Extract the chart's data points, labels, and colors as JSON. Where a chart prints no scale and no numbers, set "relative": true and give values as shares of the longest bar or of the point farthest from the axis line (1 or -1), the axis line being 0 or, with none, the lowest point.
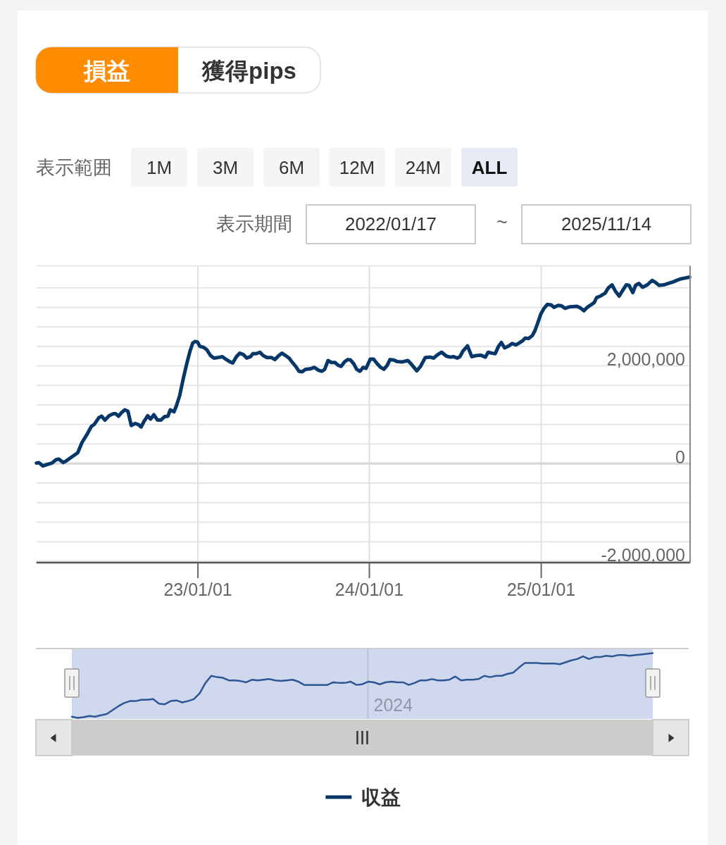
{
  "chart_data": [
    {
      "type": "line",
      "annotations": [
        "損益",
        "獲得pips",
        "表示範囲",
        "1M",
        "3M",
        "6M",
        "12M",
        "24M",
        "ALL",
        "表示期間",
        "2022/01/17",
        "~",
        "2025/11/14"
      ],
      "x": [
        "2022-01-22",
        "2022-01-27",
        "2022-02-05",
        "2022-02-14",
        "2022-02-24",
        "2022-03-05",
        "2022-03-11",
        "2022-03-20",
        "2022-03-26",
        "2022-04-05",
        "2022-04-20",
        "2022-04-29",
        "2022-05-10",
        "2022-05-19",
        "2022-05-25",
        "2022-06-04",
        "2022-06-10",
        "2022-06-17",
        "2022-06-26",
        "2022-07-05",
        "2022-07-10",
        "2022-07-16",
        "2022-07-22",
        "2022-07-29",
        "2022-08-05",
        "2022-08-12",
        "2022-08-20",
        "2022-08-27",
        "2022-09-02",
        "2022-09-08",
        "2022-09-16",
        "2022-09-22",
        "2022-09-29",
        "2022-10-07",
        "2022-10-14",
        "2022-10-22",
        "2022-10-29",
        "2022-11-03",
        "2022-11-11",
        "2022-11-16",
        "2022-11-23",
        "2022-12-01",
        "2022-12-08",
        "2022-12-15",
        "2022-12-21",
        "2022-12-26",
        "2022-12-31",
        "2023-01-05",
        "2023-01-13",
        "2023-01-20",
        "2023-01-28",
        "2023-02-04",
        "2023-02-12",
        "2023-02-22",
        "2023-03-01",
        "2023-03-09",
        "2023-03-16",
        "2023-03-24",
        "2023-03-31",
        "2023-04-08",
        "2023-04-15",
        "2023-04-23",
        "2023-04-28",
        "2023-05-05",
        "2023-05-13",
        "2023-05-20",
        "2023-05-28",
        "2023-06-07",
        "2023-06-14",
        "2023-06-22",
        "2023-06-29",
        "2023-07-07",
        "2023-07-14",
        "2023-07-22",
        "2023-07-29",
        "2023-08-04",
        "2023-08-11",
        "2023-08-18",
        "2023-08-28",
        "2023-09-06",
        "2023-09-15",
        "2023-09-22",
        "2023-09-28",
        "2023-10-05",
        "2023-10-12",
        "2023-10-20",
        "2023-10-27",
        "2023-11-02",
        "2023-11-09",
        "2023-11-16",
        "2023-11-22",
        "2023-11-29",
        "2023-12-05",
        "2023-12-12",
        "2023-12-19",
        "2023-12-25",
        "2024-01-03",
        "2024-01-10",
        "2024-01-18",
        "2024-01-25",
        "2024-02-01",
        "2024-02-08",
        "2024-02-14",
        "2024-02-22",
        "2024-02-29",
        "2024-03-10",
        "2024-03-23",
        "2024-03-30",
        "2024-04-11",
        "2024-04-19",
        "2024-04-29",
        "2024-05-09",
        "2024-05-17",
        "2024-05-24",
        "2024-06-03",
        "2024-06-13",
        "2024-06-21",
        "2024-06-28",
        "2024-07-06",
        "2024-07-12",
        "2024-07-18",
        "2024-07-28",
        "2024-08-06",
        "2024-08-15",
        "2024-08-25",
        "2024-09-04",
        "2024-09-10",
        "2024-09-19",
        "2024-09-25",
        "2024-10-02",
        "2024-10-08",
        "2024-10-15",
        "2024-10-24",
        "2024-10-31",
        "2024-11-08",
        "2024-11-15",
        "2024-11-23",
        "2024-11-28",
        "2024-12-05",
        "2024-12-13",
        "2024-12-19",
        "2024-12-25",
        "2024-12-31",
        "2025-01-07",
        "2025-01-14",
        "2025-01-22",
        "2025-01-28",
        "2025-02-06",
        "2025-02-13",
        "2025-02-21",
        "2025-03-03",
        "2025-03-18",
        "2025-03-25",
        "2025-04-02",
        "2025-04-09",
        "2025-04-17",
        "2025-04-24",
        "2025-04-29",
        "2025-05-07",
        "2025-05-17",
        "2025-05-24",
        "2025-06-01",
        "2025-06-08",
        "2025-06-16",
        "2025-06-23",
        "2025-07-01",
        "2025-07-07",
        "2025-07-15",
        "2025-07-21",
        "2025-07-28",
        "2025-08-05",
        "2025-08-15",
        "2025-08-25",
        "2025-08-31",
        "2025-09-09",
        "2025-09-19",
        "2025-09-29",
        "2025-10-09",
        "2025-10-16",
        "2025-10-24",
        "2025-11-03",
        "2025-11-13"
      ],
      "series": [
        {
          "name": "収益",
          "color": "#063768",
          "values": [
            10000,
            20000,
            -50000,
            -20000,
            10000,
            80000,
            90000,
            20000,
            50000,
            120000,
            220000,
            430000,
            600000,
            760000,
            800000,
            940000,
            970000,
            890000,
            980000,
            1020000,
            1020000,
            970000,
            1040000,
            1100000,
            1070000,
            780000,
            820000,
            800000,
            750000,
            860000,
            980000,
            910000,
            1000000,
            890000,
            890000,
            960000,
            970000,
            1100000,
            1060000,
            1180000,
            1390000,
            1750000,
            2040000,
            2300000,
            2470000,
            2500000,
            2490000,
            2400000,
            2380000,
            2330000,
            2210000,
            2160000,
            2170000,
            2190000,
            2140000,
            2090000,
            2060000,
            2190000,
            2260000,
            2230000,
            2160000,
            2190000,
            2250000,
            2250000,
            2280000,
            2210000,
            2170000,
            2170000,
            2130000,
            2210000,
            2260000,
            2210000,
            2160000,
            2060000,
            1980000,
            1890000,
            1880000,
            1930000,
            1940000,
            1970000,
            1910000,
            1890000,
            1930000,
            2110000,
            2070000,
            2070000,
            2010000,
            1990000,
            2080000,
            2130000,
            2120000,
            2040000,
            1930000,
            1890000,
            1970000,
            1950000,
            2140000,
            2140000,
            2040000,
            1970000,
            1930000,
            2010000,
            2130000,
            2120000,
            2090000,
            2080000,
            2110000,
            2040000,
            1900000,
            1990000,
            2170000,
            2180000,
            2160000,
            2220000,
            2280000,
            2200000,
            2180000,
            2190000,
            2160000,
            2190000,
            2300000,
            2410000,
            2190000,
            2210000,
            2220000,
            2180000,
            2280000,
            2260000,
            2250000,
            2400000,
            2480000,
            2370000,
            2410000,
            2460000,
            2430000,
            2470000,
            2520000,
            2570000,
            2560000,
            2620000,
            2730000,
            2890000,
            3060000,
            3180000,
            3260000,
            3250000,
            3200000,
            3240000,
            3230000,
            3180000,
            3210000,
            3220000,
            3190000,
            3130000,
            3200000,
            3250000,
            3300000,
            3400000,
            3430000,
            3490000,
            3600000,
            3660000,
            3530000,
            3430000,
            3540000,
            3660000,
            3650000,
            3500000,
            3650000,
            3690000,
            3610000,
            3660000,
            3750000,
            3720000,
            3650000,
            3660000,
            3690000,
            3720000,
            3750000,
            3780000,
            3800000,
            3820000
          ]
        }
      ],
      "xlim": [
        "2022-01-22",
        "2025-11-14"
      ],
      "xticks": [
        {
          "value": "2023-01-01",
          "label": "23/01/01"
        },
        {
          "value": "2024-01-01",
          "label": "24/01/01"
        },
        {
          "value": "2025-01-01",
          "label": "25/01/01"
        }
      ],
      "ylim": [
        -2030000,
        4050000
      ],
      "yticks": [
        {
          "value": -2000000,
          "label": "-2,000,000"
        },
        {
          "value": -1600000,
          "label": null
        },
        {
          "value": -1200000,
          "label": null
        },
        {
          "value": -800000,
          "label": null
        },
        {
          "value": -400000,
          "label": null
        },
        0,
        {
          "value": 400000,
          "label": null
        },
        {
          "value": 800000,
          "label": null
        },
        {
          "value": 1200000,
          "label": null
        },
        {
          "value": 1600000,
          "label": null
        },
        {
          "value": 2000000,
          "label": "2,000,000"
        },
        {
          "value": 2400000,
          "label": null
        },
        {
          "value": 2800000,
          "label": null
        },
        {
          "value": 3200000,
          "label": null
        },
        {
          "value": 3600000,
          "label": null
        }
      ],
      "grid": true,
      "legend": "bottom",
      "ref_lines": [
        {
          "axis": "y",
          "value": 0,
          "color": "#d9d9d9"
        }
      ]
    },
    {
      "type": "line",
      "relative": true,
      "annotations": [
        "2024"
      ],
      "categories": [
        null,
        null,
        null,
        null,
        null,
        null,
        null,
        null,
        null,
        null,
        null,
        null,
        null,
        null,
        null,
        null,
        null,
        null,
        null,
        null,
        null,
        null,
        null,
        null,
        null,
        null,
        null,
        null,
        null,
        null,
        null,
        null,
        null,
        null,
        null,
        null,
        null,
        null,
        null,
        null,
        null,
        null,
        null,
        null,
        null,
        null,
        null,
        null,
        null,
        null,
        null,
        null,
        null,
        null,
        null,
        null,
        null,
        null,
        null,
        null,
        null,
        null,
        null,
        null,
        null,
        null,
        null,
        null,
        null,
        null,
        null,
        null,
        null,
        null,
        null,
        null,
        null,
        null,
        null,
        null,
        null,
        null,
        null,
        null,
        null,
        null,
        null,
        null,
        null,
        null,
        null,
        null,
        null,
        null,
        null,
        null,
        null,
        null,
        null,
        null,
        null
      ],
      "series": [
        {
          "color": "#2d5596",
          "values": [
            0.02,
            0,
            0.01,
            0.03,
            0.02,
            0.04,
            0.06,
            0.12,
            0.18,
            0.23,
            0.26,
            0.26,
            0.28,
            0.28,
            0.29,
            0.22,
            0.21,
            0.26,
            0.27,
            0.24,
            0.26,
            0.29,
            0.38,
            0.54,
            0.65,
            0.63,
            0.62,
            0.58,
            0.58,
            0.57,
            0.55,
            0.59,
            0.58,
            0.59,
            0.6,
            0.58,
            0.57,
            0.58,
            0.59,
            0.56,
            0.51,
            0.51,
            0.51,
            0.51,
            0.51,
            0.55,
            0.54,
            0.54,
            0.56,
            0.51,
            0.52,
            0.56,
            0.55,
            0.52,
            0.55,
            0.56,
            0.55,
            0.55,
            0.51,
            0.54,
            0.58,
            0.58,
            0.6,
            0.58,
            0.58,
            0.59,
            0.64,
            0.58,
            0.59,
            0.59,
            0.6,
            0.65,
            0.63,
            0.65,
            0.65,
            0.68,
            0.7,
            0.78,
            0.85,
            0.85,
            0.85,
            0.84,
            0.84,
            0.84,
            0.83,
            0.86,
            0.89,
            0.91,
            0.95,
            0.91,
            0.94,
            0.94,
            0.96,
            0.95,
            0.97,
            0.97,
            0.96,
            0.97,
            0.98,
            0.99,
            1
          ]
        }
      ]
    }
  ]
}
